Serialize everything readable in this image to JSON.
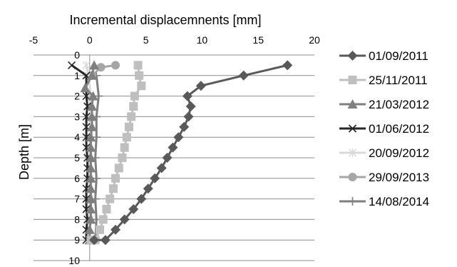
{
  "chart_data": {
    "type": "line",
    "xlabel": "Incremental displacemnents [mm]",
    "ylabel": "Depth [m]",
    "x_axis_position": "top",
    "y_axis_inverted": true,
    "xlim": [
      -5,
      20
    ],
    "ylim": [
      0,
      10
    ],
    "x_ticks": [
      -5,
      0,
      5,
      10,
      15,
      20
    ],
    "y_ticks": [
      0,
      1,
      2,
      3,
      4,
      5,
      6,
      7,
      8,
      9,
      10
    ],
    "grid": "horizontal",
    "legend_position": "right",
    "series": [
      {
        "name": "01/09/2011",
        "color": "#595959",
        "marker": "diamond",
        "points": [
          [
            17.6,
            0.5
          ],
          [
            13.7,
            1.0
          ],
          [
            9.9,
            1.5
          ],
          [
            8.7,
            2.0
          ],
          [
            9.0,
            2.5
          ],
          [
            8.8,
            3.0
          ],
          [
            8.4,
            3.5
          ],
          [
            7.9,
            4.0
          ],
          [
            7.4,
            4.5
          ],
          [
            6.9,
            5.0
          ],
          [
            6.4,
            5.5
          ],
          [
            5.8,
            6.0
          ],
          [
            5.2,
            6.5
          ],
          [
            4.6,
            7.0
          ],
          [
            3.9,
            7.5
          ],
          [
            3.1,
            8.0
          ],
          [
            2.3,
            8.5
          ],
          [
            1.4,
            9.0
          ],
          [
            0.4,
            9.0
          ]
        ]
      },
      {
        "name": "25/11/2011",
        "color": "#bfbfbf",
        "marker": "square",
        "points": [
          [
            4.3,
            0.5
          ],
          [
            4.4,
            1.0
          ],
          [
            4.6,
            1.5
          ],
          [
            4.0,
            2.0
          ],
          [
            3.9,
            2.5
          ],
          [
            3.7,
            3.0
          ],
          [
            3.5,
            3.5
          ],
          [
            3.3,
            4.0
          ],
          [
            3.1,
            4.5
          ],
          [
            2.9,
            5.0
          ],
          [
            2.6,
            5.5
          ],
          [
            2.3,
            6.0
          ],
          [
            2.1,
            6.5
          ],
          [
            1.8,
            7.0
          ],
          [
            1.5,
            7.5
          ],
          [
            1.2,
            8.0
          ],
          [
            0.9,
            8.5
          ],
          [
            0.5,
            9.0
          ],
          [
            0.1,
            9.0
          ]
        ]
      },
      {
        "name": "21/03/2012",
        "color": "#7f7f7f",
        "marker": "triangle",
        "points": [
          [
            0.4,
            0.5
          ],
          [
            0.2,
            1.0
          ],
          [
            -0.4,
            1.6
          ],
          [
            0.3,
            2.0
          ],
          [
            0.2,
            2.5
          ],
          [
            0.2,
            3.0
          ],
          [
            0.2,
            3.5
          ],
          [
            0.1,
            4.0
          ],
          [
            0.1,
            4.5
          ],
          [
            0.1,
            5.0
          ],
          [
            0.1,
            5.5
          ],
          [
            0.1,
            6.0
          ],
          [
            0.1,
            6.5
          ],
          [
            0.1,
            7.0
          ],
          [
            0.1,
            7.5
          ],
          [
            0.1,
            8.0
          ],
          [
            0.0,
            8.5
          ],
          [
            0.0,
            9.0
          ]
        ]
      },
      {
        "name": "01/06/2012",
        "color": "#262626",
        "marker": "x",
        "points": [
          [
            -1.6,
            0.5
          ],
          [
            -0.3,
            1.0
          ],
          [
            -0.3,
            2.0
          ],
          [
            -0.2,
            2.5
          ],
          [
            -0.3,
            3.0
          ],
          [
            -0.3,
            3.5
          ],
          [
            -0.3,
            4.0
          ],
          [
            -0.3,
            4.5
          ],
          [
            -0.2,
            5.0
          ],
          [
            -0.2,
            5.5
          ],
          [
            -0.2,
            6.0
          ],
          [
            -0.3,
            6.5
          ],
          [
            -0.3,
            7.0
          ],
          [
            -0.3,
            7.5
          ],
          [
            -0.2,
            8.0
          ],
          [
            -0.3,
            8.5
          ],
          [
            -0.3,
            9.0
          ]
        ]
      },
      {
        "name": "20/09/2012",
        "color": "#d9d9d9",
        "marker": "star",
        "points": [
          [
            -0.3,
            0.5
          ],
          [
            -0.1,
            1.0
          ],
          [
            0.1,
            2.0
          ],
          [
            0.0,
            3.0
          ],
          [
            0.0,
            4.0
          ],
          [
            0.0,
            5.0
          ],
          [
            0.0,
            6.0
          ],
          [
            0.0,
            7.0
          ],
          [
            0.0,
            8.0
          ],
          [
            -0.1,
            9.0
          ]
        ]
      },
      {
        "name": "29/09/2013",
        "color": "#a6a6a6",
        "marker": "circle",
        "points": [
          [
            2.3,
            0.5
          ],
          [
            1.0,
            0.6
          ],
          [
            0.2,
            1.0
          ]
        ]
      },
      {
        "name": "14/08/2014",
        "color": "#7f7f7f",
        "marker": "plus",
        "points": [
          [
            0.6,
            1.0
          ],
          [
            0.8,
            2.0
          ],
          [
            0.6,
            3.0
          ],
          [
            0.6,
            4.0
          ],
          [
            0.5,
            5.0
          ],
          [
            0.6,
            6.0
          ],
          [
            0.5,
            7.0
          ],
          [
            0.6,
            8.0
          ],
          [
            0.5,
            9.0
          ]
        ]
      }
    ]
  }
}
